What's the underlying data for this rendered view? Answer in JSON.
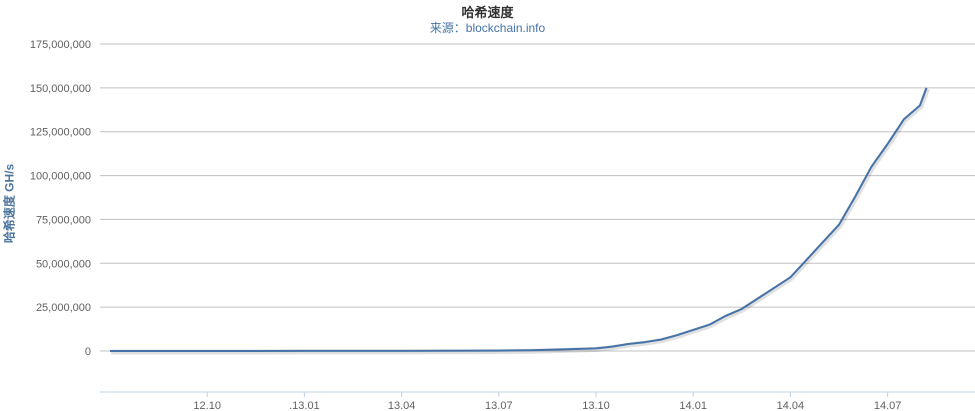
{
  "chart_data": {
    "type": "line",
    "title": "哈希速度",
    "subtitle": "来源：blockchain.info",
    "xlabel": "",
    "ylabel": "哈希速度 GH/s",
    "ylim": [
      0,
      175000000
    ],
    "y_ticks": [
      {
        "value": 0,
        "label": "0"
      },
      {
        "value": 25000000,
        "label": "25,000,000"
      },
      {
        "value": 50000000,
        "label": "50,000,000"
      },
      {
        "value": 75000000,
        "label": "75,000,000"
      },
      {
        "value": 100000000,
        "label": "100,000,000"
      },
      {
        "value": 125000000,
        "label": "125,000,000"
      },
      {
        "value": 150000000,
        "label": "150,000,000"
      },
      {
        "value": 175000000,
        "label": "175,000,000"
      }
    ],
    "x_ticks": [
      {
        "month": 3,
        "label": "12.10"
      },
      {
        "month": 6,
        "label": ".13.01"
      },
      {
        "month": 9,
        "label": "13.04"
      },
      {
        "month": 12,
        "label": "13.07"
      },
      {
        "month": 15,
        "label": "13.10"
      },
      {
        "month": 18,
        "label": "14.01"
      },
      {
        "month": 21,
        "label": "14.04"
      },
      {
        "month": 24,
        "label": "14.07"
      }
    ],
    "x_unit": "months since 2012.07",
    "grid": true,
    "legend": "none",
    "line_color": "#4572A7",
    "series": [
      {
        "values": [
          [
            0.0,
            0
          ],
          [
            3.0,
            25000
          ],
          [
            6.0,
            30000
          ],
          [
            9.0,
            60000
          ],
          [
            12.0,
            200000
          ],
          [
            13.0,
            400000
          ],
          [
            14.0,
            900000
          ],
          [
            15.0,
            1500000
          ],
          [
            15.5,
            2500000
          ],
          [
            16.0,
            4000000
          ],
          [
            16.5,
            5000000
          ],
          [
            17.0,
            6500000
          ],
          [
            17.5,
            9000000
          ],
          [
            18.0,
            12000000
          ],
          [
            18.5,
            15000000
          ],
          [
            19.0,
            20000000
          ],
          [
            19.5,
            24000000
          ],
          [
            20.0,
            30000000
          ],
          [
            20.5,
            36000000
          ],
          [
            21.0,
            42000000
          ],
          [
            21.5,
            52000000
          ],
          [
            22.0,
            62000000
          ],
          [
            22.5,
            72000000
          ],
          [
            23.0,
            88000000
          ],
          [
            23.5,
            105000000
          ],
          [
            24.0,
            118000000
          ],
          [
            24.5,
            132000000
          ],
          [
            25.0,
            140000000
          ],
          [
            25.2,
            150000000
          ]
        ]
      }
    ]
  }
}
